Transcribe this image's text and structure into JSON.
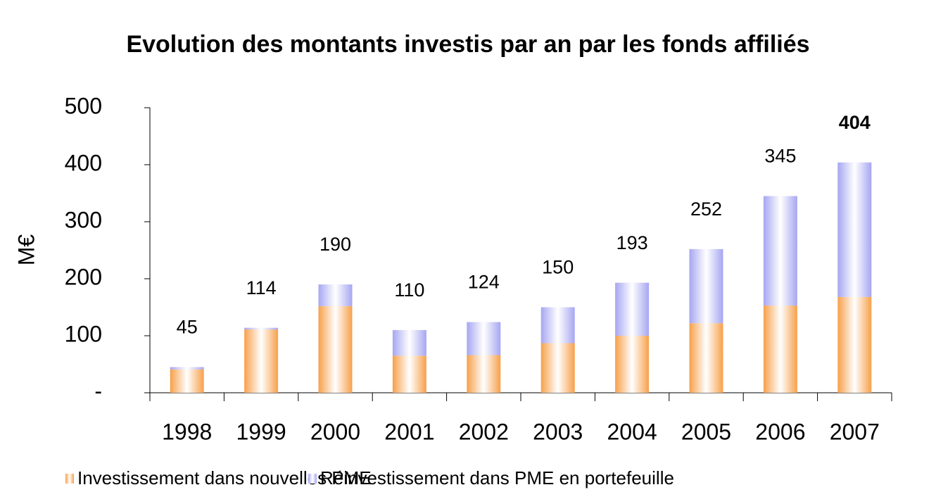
{
  "chart_data": {
    "type": "stacked_bar",
    "title": "Evolution des montants investis par an par les fonds affiliés",
    "y_label": "M€",
    "categories": [
      "1998",
      "1999",
      "2000",
      "2001",
      "2002",
      "2003",
      "2004",
      "2005",
      "2006",
      "2007"
    ],
    "series": [
      {
        "name": "Investissement dans nouvelles PME",
        "color": "#f7a04a",
        "values": [
          41,
          111,
          152,
          65,
          66,
          87,
          100,
          122,
          153,
          168
        ]
      },
      {
        "name": "Réinvestissement dans PME en portefeuille",
        "color": "#a6a6f2",
        "values": [
          4,
          3,
          38,
          45,
          58,
          63,
          93,
          130,
          192,
          236
        ]
      }
    ],
    "total_labels": [
      45,
      114,
      190,
      110,
      124,
      150,
      193,
      252,
      345,
      404
    ],
    "ylim": [
      0,
      500
    ],
    "yticks": [
      {
        "value": 0,
        "label": "-"
      },
      100,
      200,
      300,
      400,
      500
    ],
    "legend": "bottom"
  }
}
